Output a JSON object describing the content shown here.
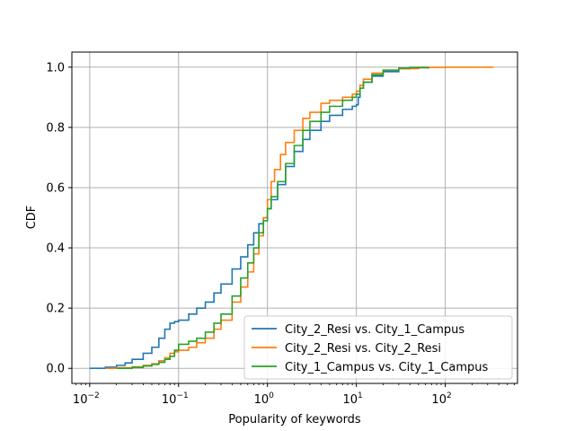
{
  "chart_data": {
    "type": "line",
    "xlabel": "Popularity of keywords",
    "ylabel": "CDF",
    "xscale": "log",
    "xlim": [
      0.0063,
      650
    ],
    "ylim": [
      -0.05,
      1.05
    ],
    "x_ticks": [
      {
        "value": 0.01,
        "base": "10",
        "exp": "−2"
      },
      {
        "value": 0.1,
        "base": "10",
        "exp": "−1"
      },
      {
        "value": 1,
        "base": "10",
        "exp": "0"
      },
      {
        "value": 10,
        "base": "10",
        "exp": "1"
      },
      {
        "value": 100,
        "base": "10",
        "exp": "2"
      }
    ],
    "y_ticks": [
      "0.0",
      "0.2",
      "0.4",
      "0.6",
      "0.8",
      "1.0"
    ],
    "y_tick_values": [
      0.0,
      0.2,
      0.4,
      0.6,
      0.8,
      1.0
    ],
    "grid": true,
    "legend_position": "lower-right",
    "series": [
      {
        "name": "City_2_Resi vs. City_1_Campus",
        "color": "#1f77b4",
        "x": [
          0.01,
          0.015,
          0.02,
          0.025,
          0.03,
          0.04,
          0.05,
          0.06,
          0.07,
          0.08,
          0.09,
          0.1,
          0.13,
          0.16,
          0.2,
          0.25,
          0.3,
          0.4,
          0.5,
          0.6,
          0.7,
          0.8,
          0.9,
          1.0,
          1.1,
          1.3,
          1.6,
          2.0,
          2.5,
          3.0,
          4.0,
          5.0,
          7.0,
          9.0,
          10.0,
          10.5,
          11.0,
          12.0,
          15.0,
          20.0,
          30.0,
          40.0,
          65.0
        ],
        "y": [
          0.0,
          0.004,
          0.01,
          0.018,
          0.03,
          0.05,
          0.07,
          0.1,
          0.13,
          0.15,
          0.155,
          0.16,
          0.18,
          0.2,
          0.22,
          0.25,
          0.28,
          0.33,
          0.37,
          0.41,
          0.45,
          0.48,
          0.5,
          0.53,
          0.56,
          0.61,
          0.67,
          0.72,
          0.76,
          0.79,
          0.82,
          0.84,
          0.86,
          0.87,
          0.875,
          0.9,
          0.93,
          0.95,
          0.97,
          0.985,
          0.995,
          0.998,
          1.0
        ]
      },
      {
        "name": "City_2_Resi vs. City_2_Resi",
        "color": "#ff7f0e",
        "x": [
          0.015,
          0.02,
          0.03,
          0.04,
          0.05,
          0.06,
          0.07,
          0.08,
          0.09,
          0.1,
          0.13,
          0.16,
          0.2,
          0.25,
          0.3,
          0.4,
          0.5,
          0.6,
          0.7,
          0.8,
          0.9,
          1.0,
          1.1,
          1.2,
          1.4,
          1.6,
          2.0,
          2.5,
          3.0,
          4.0,
          5.0,
          7.0,
          9.0,
          10.0,
          11.0,
          12.0,
          15.0,
          20.0,
          30.0,
          50.0,
          100.0,
          200.0,
          350.0
        ],
        "y": [
          0.0,
          0.002,
          0.005,
          0.01,
          0.015,
          0.025,
          0.035,
          0.05,
          0.055,
          0.06,
          0.07,
          0.085,
          0.1,
          0.13,
          0.16,
          0.22,
          0.27,
          0.32,
          0.38,
          0.44,
          0.5,
          0.56,
          0.62,
          0.66,
          0.71,
          0.75,
          0.79,
          0.83,
          0.85,
          0.88,
          0.89,
          0.9,
          0.91,
          0.92,
          0.94,
          0.96,
          0.98,
          0.99,
          0.995,
          0.999,
          1.0,
          1.0,
          1.0
        ]
      },
      {
        "name": "City_1_Campus vs. City_1_Campus",
        "color": "#2ca02c",
        "x": [
          0.02,
          0.03,
          0.04,
          0.05,
          0.06,
          0.07,
          0.08,
          0.09,
          0.1,
          0.13,
          0.16,
          0.2,
          0.25,
          0.3,
          0.4,
          0.5,
          0.6,
          0.7,
          0.8,
          0.9,
          1.0,
          1.1,
          1.3,
          1.6,
          2.0,
          2.5,
          3.0,
          4.0,
          5.0,
          7.0,
          9.0,
          10.0,
          11.0,
          12.0,
          15.0,
          20.0,
          30.0,
          40.0,
          65.0
        ],
        "y": [
          0.0,
          0.003,
          0.008,
          0.013,
          0.02,
          0.03,
          0.04,
          0.06,
          0.08,
          0.09,
          0.1,
          0.12,
          0.15,
          0.18,
          0.24,
          0.3,
          0.35,
          0.4,
          0.45,
          0.49,
          0.53,
          0.57,
          0.62,
          0.68,
          0.74,
          0.79,
          0.82,
          0.85,
          0.87,
          0.89,
          0.9,
          0.91,
          0.93,
          0.95,
          0.975,
          0.99,
          0.997,
          0.999,
          1.0
        ]
      }
    ]
  }
}
